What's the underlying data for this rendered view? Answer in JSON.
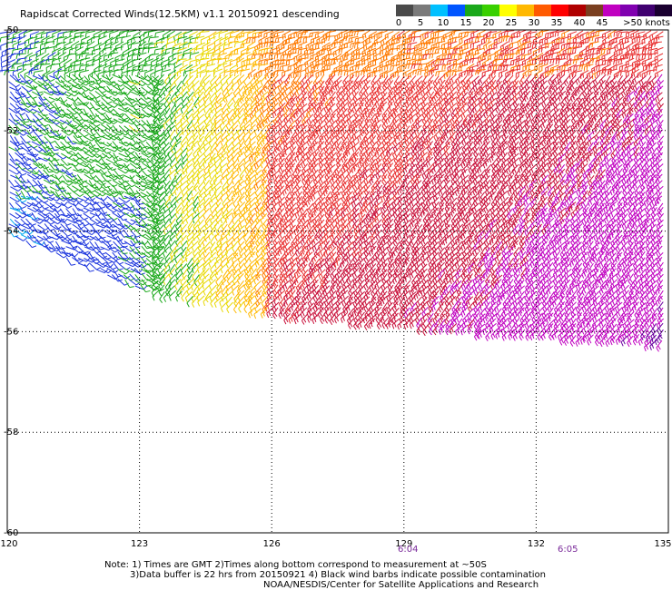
{
  "title": "Rapidscat Corrected Winds(12.5KM) v1.1 20150921 descending",
  "legend": {
    "colors": [
      "#4a4a4a",
      "#7a7a7a",
      "#00c0ff",
      "#0055ff",
      "#1aa81a",
      "#39d000",
      "#ffff00",
      "#ffb800",
      "#ff5a00",
      "#ff0000",
      "#b00000",
      "#7a3f20",
      "#c000c0",
      "#8000b0",
      "#400070",
      "#1a0030"
    ],
    "labels": [
      "0",
      "5",
      "10",
      "15",
      "20",
      "25",
      "30",
      "35",
      "40",
      "45",
      ">50 knots"
    ]
  },
  "map": {
    "x_ticks": [
      "120",
      "123",
      "126",
      "129",
      "132",
      "135"
    ],
    "y_ticks": [
      "-50",
      "-52",
      "-54",
      "-56",
      "-58",
      "-60"
    ],
    "x_range": [
      120,
      135
    ],
    "y_range": [
      -50,
      -60
    ]
  },
  "times": [
    "6:04",
    "6:05"
  ],
  "notes": {
    "line1": "Note: 1) Times are GMT 2)Times along bottom correspond to measurement at ~50S",
    "line2": "3)Data buffer is 22 hrs from 20150921 4) Black wind barbs indicate possible contamination",
    "line3": "NOAA/NESDIS/Center for Satellite Applications and Research"
  }
}
